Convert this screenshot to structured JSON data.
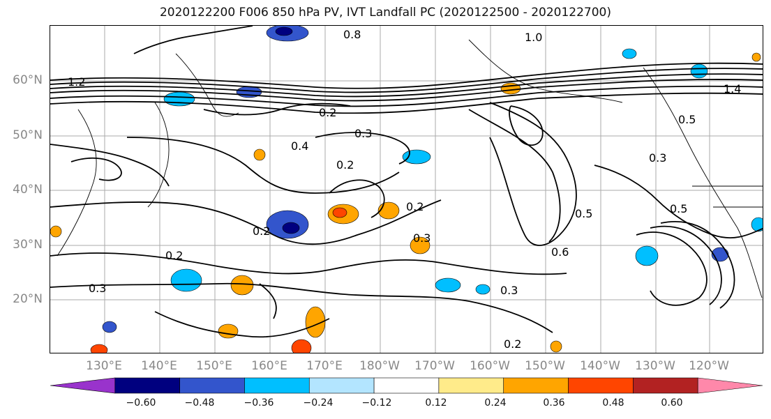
{
  "title": "2020122200 F006 850 hPa PV, IVT Landfall PC (2020122500 - 2020122700)",
  "map": {
    "lat_labels": [
      "60°N",
      "50°N",
      "40°N",
      "30°N",
      "20°N"
    ],
    "lon_labels": [
      "130°E",
      "140°E",
      "150°E",
      "160°E",
      "170°E",
      "180°W",
      "170°W",
      "160°W",
      "150°W",
      "140°W",
      "130°W",
      "120°W"
    ],
    "contour_labels": [
      "0.8",
      "1.0",
      "1.2",
      "1.4",
      "0.2",
      "0.3",
      "0.4",
      "0.5",
      "0.6",
      "0.2",
      "0.3",
      "0.2",
      "0.5",
      "0.3",
      "0.2",
      "0.3",
      "0.2",
      "0.5",
      "0.3",
      "0.2"
    ],
    "shading_colors": {
      "neg_strong": "#00007f",
      "neg_mid": "#3355cc",
      "neg_light": "#00bfff",
      "neg_faint": "#b3e5ff",
      "pos_faint": "#ffeb8a",
      "pos_light": "#ffa500",
      "pos_mid": "#ff4500",
      "pos_strong": "#b22222"
    }
  },
  "colorbar": {
    "colors": [
      "#9933cc",
      "#00007f",
      "#3355cc",
      "#00bfff",
      "#b3e5ff",
      "#ffffff",
      "#ffeb8a",
      "#ffa500",
      "#ff4500",
      "#b22222",
      "#ff88aa"
    ],
    "ticks": [
      "−0.60",
      "−0.48",
      "−0.36",
      "−0.24",
      "−0.12",
      "0.12",
      "0.24",
      "0.36",
      "0.48",
      "0.60"
    ]
  }
}
